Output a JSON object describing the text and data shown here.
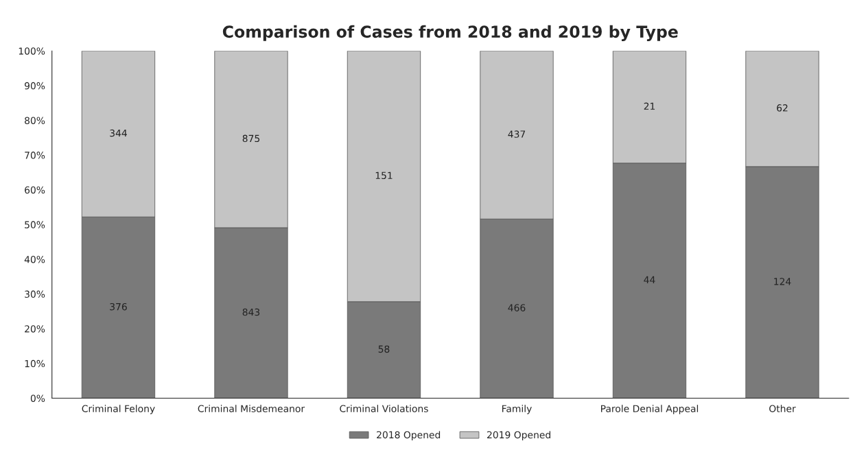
{
  "chart_data": {
    "type": "bar",
    "title": "Comparison of Cases from 2018 and 2019 by Type",
    "stacked": true,
    "categories": [
      "Criminal Felony",
      "Criminal Misdemeanor",
      "Criminal Violations",
      "Family",
      "Parole Denial Appeal",
      "Other"
    ],
    "series": [
      {
        "name": "2018 Opened",
        "color": "#7a7a7a",
        "values": [
          52.2,
          49.1,
          27.8,
          51.6,
          67.7,
          66.7
        ]
      },
      {
        "name": "2019 Opened",
        "color": "#c4c4c4",
        "values": [
          47.8,
          50.9,
          72.2,
          48.4,
          32.3,
          33.3
        ]
      }
    ],
    "annotations": [
      "376",
      "843",
      "58",
      "466",
      "44",
      "124",
      "344",
      "875",
      "151",
      "437",
      "21",
      "62"
    ],
    "ylim": [
      0,
      100
    ],
    "yticks": [
      {
        "value": 0,
        "label": "0%"
      },
      {
        "value": 10,
        "label": "10%"
      },
      {
        "value": 20,
        "label": "20%"
      },
      {
        "value": 30,
        "label": "30%"
      },
      {
        "value": 40,
        "label": "40%"
      },
      {
        "value": 50,
        "label": "50%"
      },
      {
        "value": 60,
        "label": "60%"
      },
      {
        "value": 70,
        "label": "70%"
      },
      {
        "value": 80,
        "label": "80%"
      },
      {
        "value": 90,
        "label": "90%"
      },
      {
        "value": 100,
        "label": "100%"
      }
    ],
    "legend": "bottom",
    "grid": false
  }
}
